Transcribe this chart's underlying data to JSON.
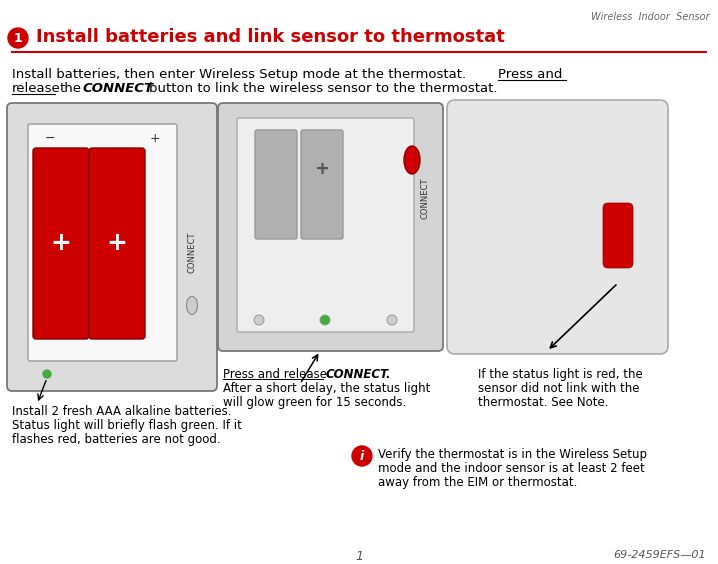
{
  "bg_color": "#ffffff",
  "header_italic": "Wireless  Indoor  Sensor",
  "title_num": "1",
  "title_text": "Install batteries and link sensor to thermostat",
  "title_color": "#cc0000",
  "caption1_line1": "Install 2 fresh AAA alkaline batteries.",
  "caption1_line2": "Status light will briefly flash green. If it",
  "caption1_line3": "flashes red, batteries are not good.",
  "caption2_under": "Press and release",
  "caption2_bold": "CONNECT.",
  "caption2_line2": "After a short delay, the status light",
  "caption2_line3": "will glow green for 15 seconds.",
  "caption3_line1": "If the status light is red, the",
  "caption3_line2": "sensor did not link with the",
  "caption3_line3": "thermostat. See Note.",
  "note_text_line1": "Verify the thermostat is in the Wireless Setup",
  "note_text_line2": "mode and the indoor sensor is at least 2 feet",
  "note_text_line3": "away from the EIM or thermostat.",
  "footer_page": "1",
  "footer_right": "69-2459EFS—01",
  "red": "#cc0000",
  "dark": "#222222"
}
